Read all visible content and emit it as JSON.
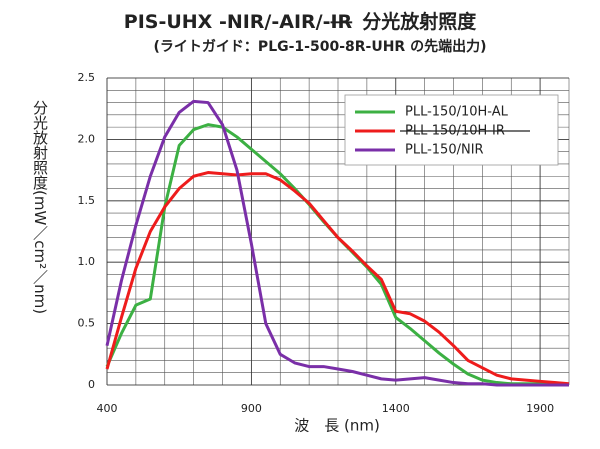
{
  "chart_data": {
    "type": "line",
    "title": [
      "PIS-UHX -NIR/-AIR/-",
      "IR",
      "分光放射照度"
    ],
    "title_struck_part": 1,
    "subtitle": "(ライトガイド：PLG-1-500-8R-UHR の先端出力)",
    "ylabel": "分光放射照度(mW／cm²／nm)",
    "xlabel": "波　長 (nm)",
    "x": [
      400,
      450,
      500,
      550,
      600,
      650,
      700,
      750,
      800,
      850,
      900,
      950,
      1000,
      1050,
      1100,
      1150,
      1200,
      1250,
      1300,
      1350,
      1400,
      1450,
      1500,
      1550,
      1600,
      1650,
      1700,
      1750,
      1800,
      1850,
      1900,
      1950,
      2000
    ],
    "series": [
      {
        "name": "PLL-150/10H-AL",
        "color": "#3cb043",
        "values": [
          0.15,
          0.42,
          0.65,
          0.7,
          1.45,
          1.95,
          2.08,
          2.12,
          2.1,
          2.02,
          1.92,
          1.82,
          1.72,
          1.6,
          1.47,
          1.33,
          1.2,
          1.08,
          0.96,
          0.82,
          0.55,
          0.46,
          0.36,
          0.26,
          0.17,
          0.09,
          0.04,
          0.02,
          0.01,
          0.01,
          0.01,
          0,
          0
        ]
      },
      {
        "name": "PLL-150/10H-IR",
        "color": "#ee1c1c",
        "strikethrough": true,
        "values": [
          0.13,
          0.55,
          0.95,
          1.25,
          1.45,
          1.6,
          1.7,
          1.73,
          1.72,
          1.71,
          1.72,
          1.72,
          1.67,
          1.58,
          1.48,
          1.34,
          1.2,
          1.09,
          0.97,
          0.86,
          0.6,
          0.58,
          0.52,
          0.43,
          0.32,
          0.2,
          0.14,
          0.08,
          0.05,
          0.04,
          0.03,
          0.02,
          0.01
        ]
      },
      {
        "name": "PLL-150/NIR",
        "color": "#7a2fa8",
        "values": [
          0.32,
          0.85,
          1.3,
          1.7,
          2.02,
          2.22,
          2.31,
          2.3,
          2.12,
          1.75,
          1.15,
          0.5,
          0.25,
          0.18,
          0.15,
          0.15,
          0.13,
          0.11,
          0.08,
          0.05,
          0.04,
          0.05,
          0.06,
          0.04,
          0.02,
          0.01,
          0.01,
          0,
          0,
          0,
          0,
          0,
          0
        ]
      }
    ],
    "xlim": [
      400,
      2000
    ],
    "xticks": [
      400,
      900,
      1400,
      1900
    ],
    "ylim": [
      0,
      2.5
    ],
    "yticks": [
      0,
      0.5,
      {
        "value": 1,
        "label": "1.0"
      },
      1.5,
      {
        "value": 2,
        "label": "2.0"
      },
      2.5
    ],
    "grid": true,
    "legend": "upper right"
  }
}
